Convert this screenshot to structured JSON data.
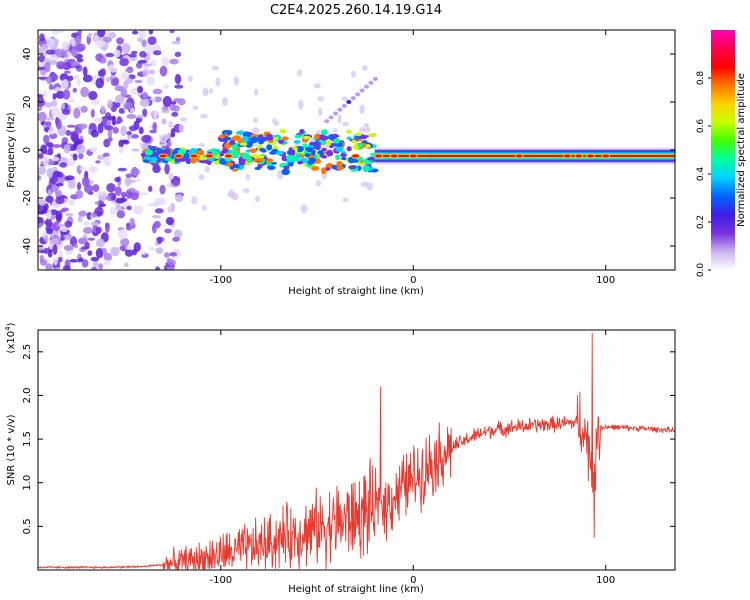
{
  "title": "C2E4.2025.260.14.19.G14",
  "colors": {
    "snr_line": "#e83a30",
    "colormap": [
      "#ffffff",
      "#c8b4f0",
      "#7a30e0",
      "#3c1ee6",
      "#0064ff",
      "#00d2ff",
      "#00ffa0",
      "#40ff00",
      "#c8ff00",
      "#ffd200",
      "#ff7800",
      "#ff0000",
      "#ff0050",
      "#ff00b4"
    ]
  },
  "chart_data": [
    {
      "type": "heatmap",
      "name": "spectrogram",
      "xlabel": "Height of straight line (km)",
      "ylabel": "Frequency (Hz)",
      "xlim": [
        -195,
        136
      ],
      "ylim": [
        -50,
        50
      ],
      "x_ticks": [
        -100,
        0,
        100
      ],
      "y_ticks": [
        -40,
        -20,
        0,
        20,
        40
      ],
      "main_band": {
        "frequency": -2.5,
        "x_start": -140,
        "x_end": 136
      },
      "bright_segments": [
        {
          "x_start": -140,
          "x_end": -95
        },
        {
          "x_start": -50,
          "x_end": -20
        },
        {
          "x_start": -20,
          "x_end": 136
        }
      ],
      "colorbar": {
        "label": "Normalized spectral amplitude",
        "range": [
          0,
          1
        ],
        "ticks": [
          0.0,
          0.2,
          0.4,
          0.6,
          0.8
        ]
      }
    },
    {
      "type": "line",
      "name": "snr",
      "xlabel": "Height of straight line (km)",
      "ylabel": "SNR (10 * v/v)",
      "y_multiplier_label": "(x10",
      "y_multiplier_exp": "4",
      "y_multiplier_close": ")",
      "xlim": [
        -195,
        136
      ],
      "ylim": [
        0,
        2.75
      ],
      "x_ticks": [
        -100,
        0,
        100
      ],
      "y_ticks": [
        0.5,
        1.0,
        1.5,
        2.0,
        2.5
      ],
      "y_tick_labels": [
        "0.5",
        "1.0",
        "1.5",
        "2.0",
        "2.5"
      ],
      "series": [
        {
          "name": "SNR",
          "x": [
            -195,
            -160,
            -140,
            -130,
            -120,
            -110,
            -100,
            -90,
            -80,
            -70,
            -60,
            -50,
            -40,
            -30,
            -25,
            -20,
            -15,
            -10,
            -5,
            0,
            5,
            10,
            20,
            30,
            40,
            50,
            60,
            70,
            80,
            88,
            92,
            94,
            96,
            100,
            110,
            120,
            136
          ],
          "values": [
            0.03,
            0.03,
            0.04,
            0.06,
            0.09,
            0.13,
            0.18,
            0.22,
            0.28,
            0.35,
            0.42,
            0.48,
            0.55,
            0.6,
            0.65,
            0.7,
            0.75,
            0.85,
            0.95,
            1.05,
            1.15,
            1.25,
            1.4,
            1.52,
            1.6,
            1.63,
            1.65,
            1.67,
            1.68,
            1.7,
            1.3,
            1.1,
            1.62,
            1.64,
            1.63,
            1.62,
            1.6
          ]
        }
      ],
      "spikes": [
        {
          "x": -17,
          "value": 2.1
        },
        {
          "x": 93,
          "value": 2.72
        },
        {
          "x": 94,
          "value": 0.37
        }
      ]
    }
  ]
}
